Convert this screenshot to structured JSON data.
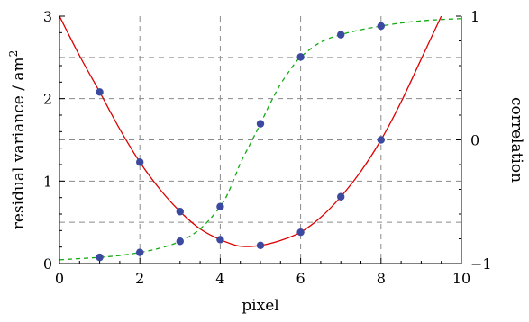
{
  "chart_data": {
    "type": "line",
    "xlabel": "pixel",
    "ylabel_left": "residual variance / am²",
    "ylabel_right": "correlation",
    "xlim": [
      0,
      10
    ],
    "ylim_left": [
      0,
      3
    ],
    "ylim_right": [
      -1,
      1
    ],
    "x_ticks": [
      0,
      2,
      4,
      6,
      8,
      10
    ],
    "y_left_ticks": [
      0,
      1,
      2,
      3
    ],
    "y_right_ticks": [
      -1,
      0,
      1
    ],
    "grid": true,
    "grid_x": [
      2,
      4,
      6,
      8
    ],
    "grid_y_left": [
      0.5,
      1.0,
      1.5,
      2.0,
      2.5
    ],
    "series": [
      {
        "axis": "left",
        "style": "solid",
        "color": "#dd0000",
        "points_x": [
          1,
          2,
          3,
          4,
          5,
          6,
          7,
          8
        ],
        "points_y": [
          2.08,
          1.23,
          0.63,
          0.29,
          0.22,
          0.38,
          0.81,
          1.5
        ],
        "curve_x": [
          0,
          0.5,
          1,
          1.5,
          2,
          2.5,
          3,
          3.5,
          4,
          4.5,
          5,
          5.5,
          6,
          6.5,
          7,
          7.5,
          8,
          8.5,
          9,
          9.5
        ],
        "curve_y": [
          3.0,
          2.52,
          2.08,
          1.63,
          1.23,
          0.9,
          0.63,
          0.42,
          0.29,
          0.21,
          0.22,
          0.28,
          0.38,
          0.56,
          0.81,
          1.12,
          1.5,
          1.96,
          2.48,
          3.0
        ]
      },
      {
        "axis": "right",
        "style": "dashed",
        "color": "#11aa11",
        "points_x": [
          1,
          2,
          3,
          4,
          5,
          6,
          7,
          8
        ],
        "points_y": [
          -0.95,
          -0.91,
          -0.82,
          -0.54,
          0.13,
          0.67,
          0.85,
          0.92
        ],
        "curve_x": [
          0,
          0.5,
          1,
          1.5,
          2,
          2.5,
          3,
          3.5,
          4,
          4.25,
          4.5,
          4.75,
          5,
          5.25,
          5.5,
          5.75,
          6,
          6.5,
          7,
          7.5,
          8,
          8.5,
          9,
          9.5,
          10
        ],
        "curve_y": [
          -0.97,
          -0.96,
          -0.95,
          -0.935,
          -0.91,
          -0.875,
          -0.82,
          -0.72,
          -0.54,
          -0.39,
          -0.19,
          -0.03,
          0.13,
          0.3,
          0.45,
          0.57,
          0.67,
          0.79,
          0.85,
          0.89,
          0.92,
          0.945,
          0.962,
          0.973,
          0.98
        ]
      }
    ]
  },
  "colors": {
    "marker": "#3b4aa0",
    "grid": "#8a8a8a",
    "axes": "#000000"
  }
}
